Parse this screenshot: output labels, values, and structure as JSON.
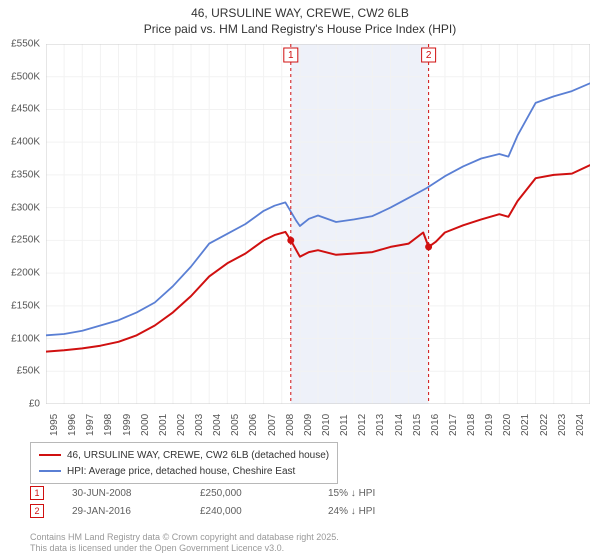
{
  "title": {
    "line1": "46, URSULINE WAY, CREWE, CW2 6LB",
    "line2": "Price paid vs. HM Land Registry's House Price Index (HPI)"
  },
  "chart": {
    "type": "line",
    "background_color": "#ffffff",
    "grid_color": "#f2f2f2",
    "axis_color": "#cccccc",
    "shade_band": {
      "from_year": 2008.5,
      "to_year": 2016.1,
      "fill": "#eef1f9"
    },
    "xlim": [
      1995,
      2025
    ],
    "ylim": [
      0,
      550000
    ],
    "ytick_step": 50000,
    "yticks": [
      "£0",
      "£50K",
      "£100K",
      "£150K",
      "£200K",
      "£250K",
      "£300K",
      "£350K",
      "£400K",
      "£450K",
      "£500K",
      "£550K"
    ],
    "xticks": [
      "1995",
      "1996",
      "1997",
      "1998",
      "1999",
      "2000",
      "2001",
      "2002",
      "2003",
      "2004",
      "2005",
      "2006",
      "2007",
      "2008",
      "2009",
      "2010",
      "2011",
      "2012",
      "2013",
      "2014",
      "2015",
      "2016",
      "2017",
      "2018",
      "2019",
      "2020",
      "2021",
      "2022",
      "2023",
      "2024"
    ],
    "tick_fontsize": 10,
    "series": [
      {
        "name": "46, URSULINE WAY, CREWE, CW2 6LB (detached house)",
        "color": "#d01010",
        "line_width": 2,
        "points": [
          [
            1995,
            80000
          ],
          [
            1996,
            82000
          ],
          [
            1997,
            85000
          ],
          [
            1998,
            89000
          ],
          [
            1999,
            95000
          ],
          [
            2000,
            105000
          ],
          [
            2001,
            120000
          ],
          [
            2002,
            140000
          ],
          [
            2003,
            165000
          ],
          [
            2004,
            195000
          ],
          [
            2005,
            215000
          ],
          [
            2006,
            230000
          ],
          [
            2007,
            250000
          ],
          [
            2007.6,
            258000
          ],
          [
            2008.2,
            263000
          ],
          [
            2008.5,
            250000
          ],
          [
            2009,
            225000
          ],
          [
            2009.5,
            232000
          ],
          [
            2010,
            235000
          ],
          [
            2011,
            228000
          ],
          [
            2012,
            230000
          ],
          [
            2013,
            232000
          ],
          [
            2014,
            240000
          ],
          [
            2015,
            245000
          ],
          [
            2015.8,
            262000
          ],
          [
            2016.1,
            240000
          ],
          [
            2016.5,
            248000
          ],
          [
            2017,
            262000
          ],
          [
            2018,
            273000
          ],
          [
            2019,
            282000
          ],
          [
            2020,
            290000
          ],
          [
            2020.5,
            286000
          ],
          [
            2021,
            310000
          ],
          [
            2022,
            345000
          ],
          [
            2023,
            350000
          ],
          [
            2024,
            352000
          ],
          [
            2025,
            365000
          ]
        ]
      },
      {
        "name": "HPI: Average price, detached house, Cheshire East",
        "color": "#5a7fd4",
        "line_width": 1.8,
        "points": [
          [
            1995,
            105000
          ],
          [
            1996,
            107000
          ],
          [
            1997,
            112000
          ],
          [
            1998,
            120000
          ],
          [
            1999,
            128000
          ],
          [
            2000,
            140000
          ],
          [
            2001,
            155000
          ],
          [
            2002,
            180000
          ],
          [
            2003,
            210000
          ],
          [
            2004,
            245000
          ],
          [
            2005,
            260000
          ],
          [
            2006,
            275000
          ],
          [
            2007,
            295000
          ],
          [
            2007.6,
            303000
          ],
          [
            2008.2,
            308000
          ],
          [
            2008.8,
            280000
          ],
          [
            2009,
            272000
          ],
          [
            2009.5,
            283000
          ],
          [
            2010,
            288000
          ],
          [
            2011,
            278000
          ],
          [
            2012,
            282000
          ],
          [
            2013,
            287000
          ],
          [
            2014,
            300000
          ],
          [
            2015,
            315000
          ],
          [
            2016,
            330000
          ],
          [
            2017,
            348000
          ],
          [
            2018,
            363000
          ],
          [
            2019,
            375000
          ],
          [
            2020,
            382000
          ],
          [
            2020.5,
            378000
          ],
          [
            2021,
            410000
          ],
          [
            2022,
            460000
          ],
          [
            2023,
            470000
          ],
          [
            2024,
            478000
          ],
          [
            2025,
            490000
          ]
        ]
      }
    ],
    "event_markers": [
      {
        "label": "1",
        "x": 2008.5,
        "y": 250000,
        "color": "#d01010"
      },
      {
        "label": "2",
        "x": 2016.1,
        "y": 240000,
        "color": "#d01010"
      }
    ]
  },
  "legend": {
    "items": [
      {
        "color": "#d01010",
        "label": "46, URSULINE WAY, CREWE, CW2 6LB (detached house)"
      },
      {
        "color": "#5a7fd4",
        "label": "HPI: Average price, detached house, Cheshire East"
      }
    ]
  },
  "transactions": [
    {
      "num": "1",
      "date": "30-JUN-2008",
      "price": "£250,000",
      "delta": "15% ↓ HPI",
      "box_color": "#d01010"
    },
    {
      "num": "2",
      "date": "29-JAN-2016",
      "price": "£240,000",
      "delta": "24% ↓ HPI",
      "box_color": "#d01010"
    }
  ],
  "credits": {
    "line1": "Contains HM Land Registry data © Crown copyright and database right 2025.",
    "line2": "This data is licensed under the Open Government Licence v3.0."
  }
}
